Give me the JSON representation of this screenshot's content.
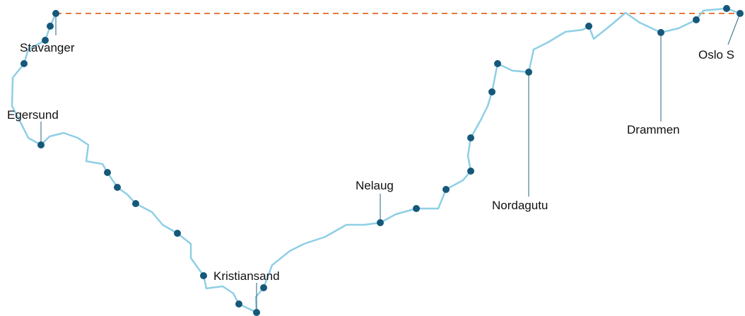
{
  "stations": [
    {
      "name": "Stavanger"
    },
    {
      "name": "Egersund"
    },
    {
      "name": "Kristiansand"
    },
    {
      "name": "Nelaug"
    },
    {
      "name": "Nordagutu"
    },
    {
      "name": "Drammen"
    },
    {
      "name": "Oslo S"
    }
  ]
}
